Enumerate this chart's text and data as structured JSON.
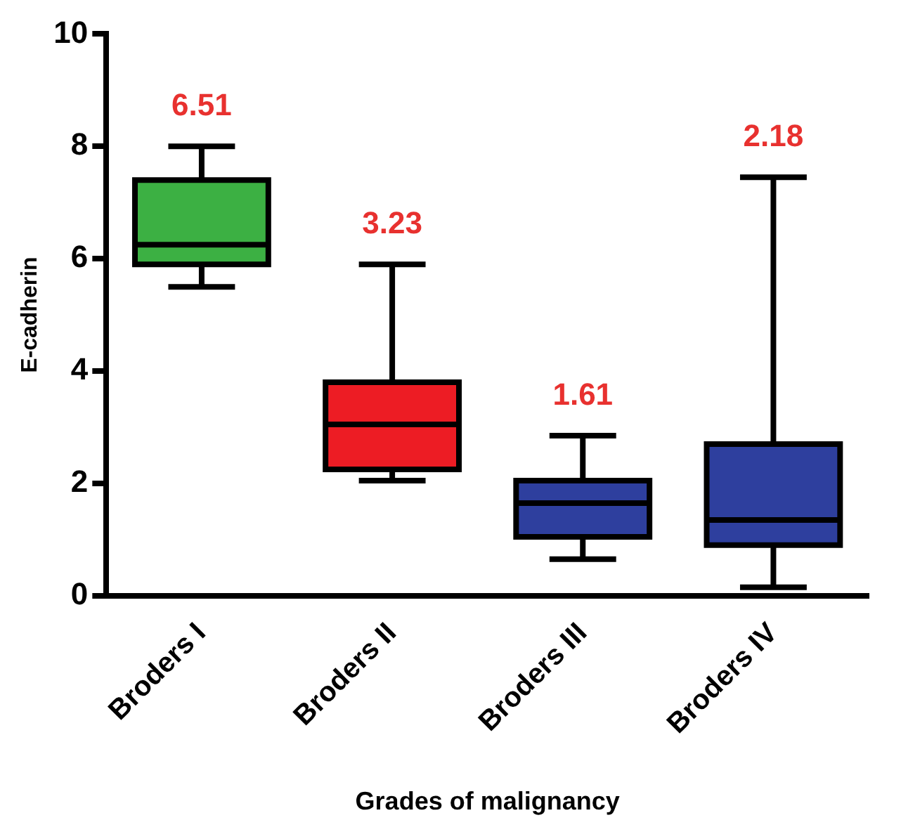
{
  "chart_data": {
    "type": "box",
    "xlabel": "Grades of malignancy",
    "ylabel": "E-cadherin",
    "categories": [
      "Broders I",
      "Broders II",
      "Broders III",
      "Broders IV"
    ],
    "colors": [
      "#3cb043",
      "#ed1c24",
      "#2e3f9e",
      "#2e3f9e"
    ],
    "boxes": [
      {
        "low": 5.5,
        "q1": 5.9,
        "median": 6.25,
        "q3": 7.4,
        "high": 8.0
      },
      {
        "low": 2.05,
        "q1": 2.25,
        "median": 3.05,
        "q3": 3.8,
        "high": 5.9
      },
      {
        "low": 0.65,
        "q1": 1.05,
        "median": 1.65,
        "q3": 2.05,
        "high": 2.85
      },
      {
        "low": 0.15,
        "q1": 0.9,
        "median": 1.35,
        "q3": 2.7,
        "high": 7.45
      }
    ],
    "ylim": [
      0,
      10
    ],
    "yticks": [
      0,
      2,
      4,
      6,
      8,
      10
    ],
    "grid": false,
    "annotations": [
      "6.51",
      "3.23",
      "1.61",
      "2.18"
    ]
  }
}
